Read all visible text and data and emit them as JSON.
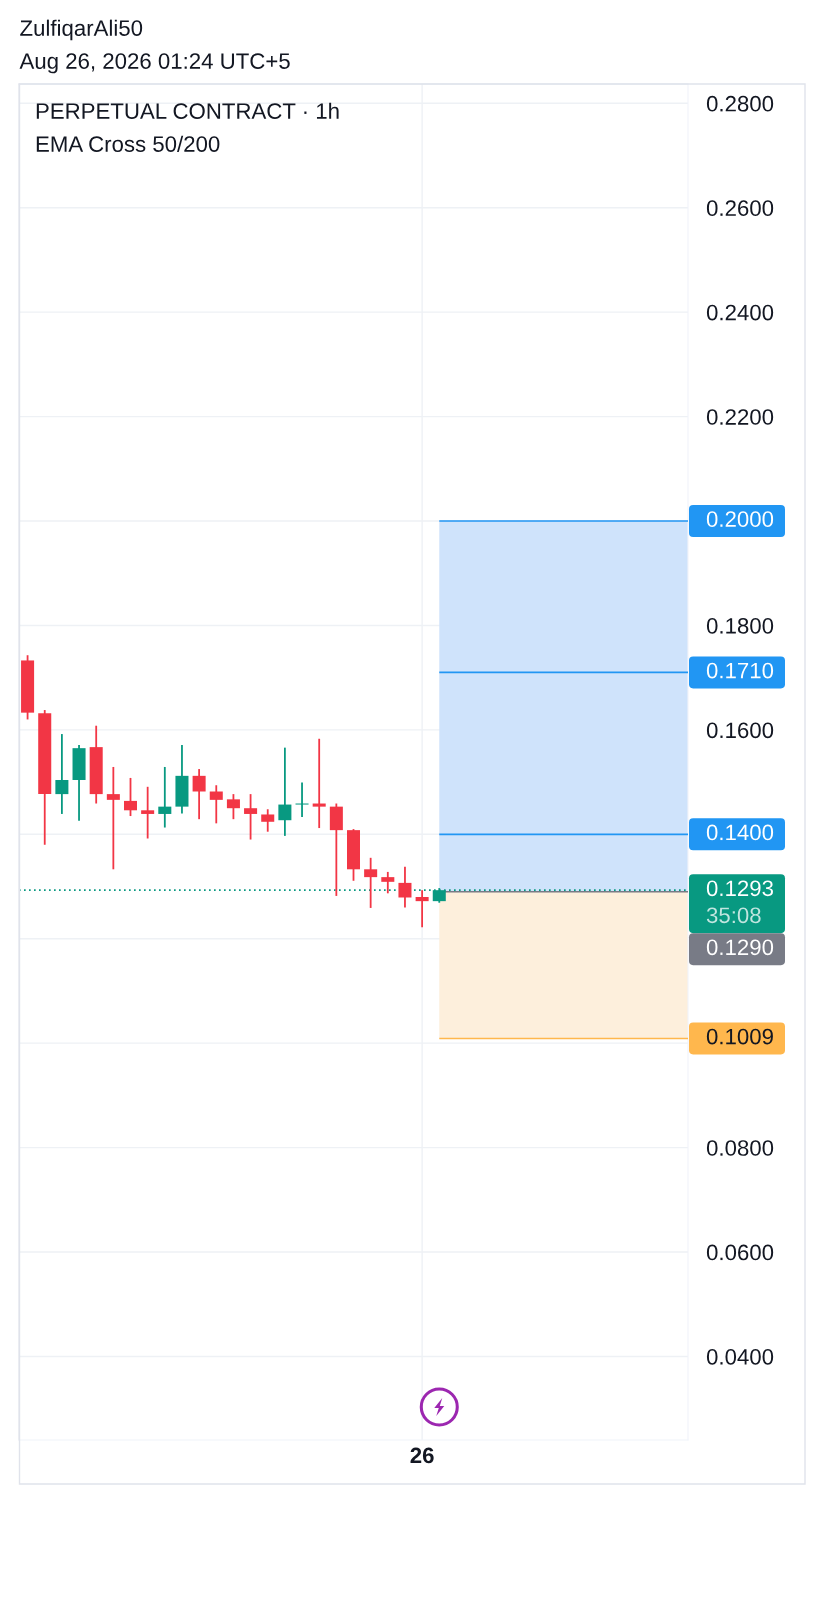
{
  "chart_data": {
    "type": "candlestick",
    "title": "PERPETUAL CONTRACT · 1h",
    "subtitle": "EMA Cross 50/200",
    "annotations": [
      "ZulfiqarAli50",
      "Aug 26, 2026 01:24 UTC+5",
      "35:08"
    ],
    "categories": [
      null,
      null,
      null,
      null,
      null,
      null,
      null,
      null,
      null,
      null,
      null,
      null,
      null,
      null,
      null,
      null,
      null,
      null,
      null,
      null,
      null,
      null,
      null,
      "26",
      null,
      null,
      null,
      null,
      null,
      null,
      null,
      null,
      null,
      null,
      null,
      null,
      null,
      null,
      null
    ],
    "ohlc": [
      [
        0.1733,
        0.1743,
        0.162,
        0.1633
      ],
      [
        0.1632,
        0.1638,
        0.138,
        0.1477
      ],
      [
        0.1477,
        0.1592,
        0.1439,
        0.1504
      ],
      [
        0.1504,
        0.1571,
        0.1426,
        0.1565
      ],
      [
        0.1567,
        0.1608,
        0.1459,
        0.1477
      ],
      [
        0.1477,
        0.1529,
        0.1333,
        0.1466
      ],
      [
        0.1464,
        0.1508,
        0.1435,
        0.1446
      ],
      [
        0.1446,
        0.1491,
        0.1392,
        0.1439
      ],
      [
        0.1439,
        0.1529,
        0.1413,
        0.1453
      ],
      [
        0.1453,
        0.1571,
        0.144,
        0.1512
      ],
      [
        0.1512,
        0.1525,
        0.1429,
        0.1482
      ],
      [
        0.1482,
        0.1494,
        0.1421,
        0.1466
      ],
      [
        0.1467,
        0.1477,
        0.1429,
        0.145
      ],
      [
        0.145,
        0.1477,
        0.139,
        0.1439
      ],
      [
        0.1438,
        0.1448,
        0.1405,
        0.1424
      ],
      [
        0.1427,
        0.1566,
        0.1397,
        0.1457
      ],
      [
        0.1457,
        0.1499,
        0.1433,
        0.1459
      ],
      [
        0.1459,
        0.1583,
        0.1412,
        0.1453
      ],
      [
        0.1453,
        0.1459,
        0.1282,
        0.1408
      ],
      [
        0.1408,
        0.141,
        0.1311,
        0.1333
      ],
      [
        0.1333,
        0.1355,
        0.1259,
        0.1318
      ],
      [
        0.1318,
        0.1328,
        0.1287,
        0.1309
      ],
      [
        0.1307,
        0.1338,
        0.126,
        0.1279
      ],
      [
        0.128,
        0.1293,
        0.1222,
        0.1272
      ],
      [
        0.1272,
        0.1297,
        0.1269,
        0.1293
      ],
      null,
      null,
      null,
      null,
      null,
      null,
      null,
      null,
      null,
      null,
      null,
      null,
      null,
      null
    ],
    "colors": [
      "#f23645",
      "#f23645",
      "#089981",
      "#089981",
      "#f23645",
      "#f23645",
      "#f23645",
      "#f23645",
      "#089981",
      "#089981",
      "#f23645",
      "#f23645",
      "#f23645",
      "#f23645",
      "#f23645",
      "#089981",
      "#089981",
      "#f23645",
      "#f23645",
      "#f23645",
      "#f23645",
      "#f23645",
      "#f23645",
      "#f23645",
      "#089981",
      null,
      null,
      null,
      null,
      null,
      null,
      null,
      null,
      null,
      null,
      null,
      null,
      null,
      null
    ],
    "ylim": [
      0.024,
      0.2837
    ],
    "yticks": [
      {
        "value": 0.28,
        "label": "0.2800"
      },
      {
        "value": 0.26,
        "label": "0.2600"
      },
      {
        "value": 0.24,
        "label": "0.2400"
      },
      {
        "value": 0.22,
        "label": "0.2200"
      },
      {
        "value": 0.2,
        "label": null
      },
      {
        "value": 0.18,
        "label": "0.1800"
      },
      {
        "value": 0.16,
        "label": "0.1600"
      },
      {
        "value": 0.14,
        "label": null
      },
      {
        "value": 0.12,
        "label": null
      },
      {
        "value": 0.1,
        "label": null
      },
      {
        "value": 0.08,
        "label": "0.0800"
      },
      {
        "value": 0.06,
        "label": "0.0600"
      },
      {
        "value": 0.04,
        "label": "0.0400"
      }
    ],
    "grid": true,
    "bands": [
      {
        "axis": "y",
        "from": 0.129,
        "to": 0.2,
        "color": "#cfe3fb"
      },
      {
        "axis": "y",
        "from": 0.1009,
        "to": 0.129,
        "color": "#fdefdc"
      }
    ],
    "ref_lines": [
      {
        "axis": "y",
        "value": 0.2,
        "label": "0.2000",
        "color": "#2196f3"
      },
      {
        "axis": "y",
        "value": 0.171,
        "label": "0.1710",
        "color": "#2196f3"
      },
      {
        "axis": "y",
        "value": 0.14,
        "label": "0.1400",
        "color": "#2196f3"
      },
      {
        "axis": "y",
        "value": 0.1293,
        "label": "0.1293",
        "color": "#089981",
        "line_style": "dotted"
      },
      {
        "axis": "y",
        "value": 0.129,
        "label": "0.1290",
        "color": "#787b86"
      },
      {
        "axis": "y",
        "value": 0.1009,
        "label": "0.1009",
        "color": "#ffb74d"
      }
    ]
  }
}
